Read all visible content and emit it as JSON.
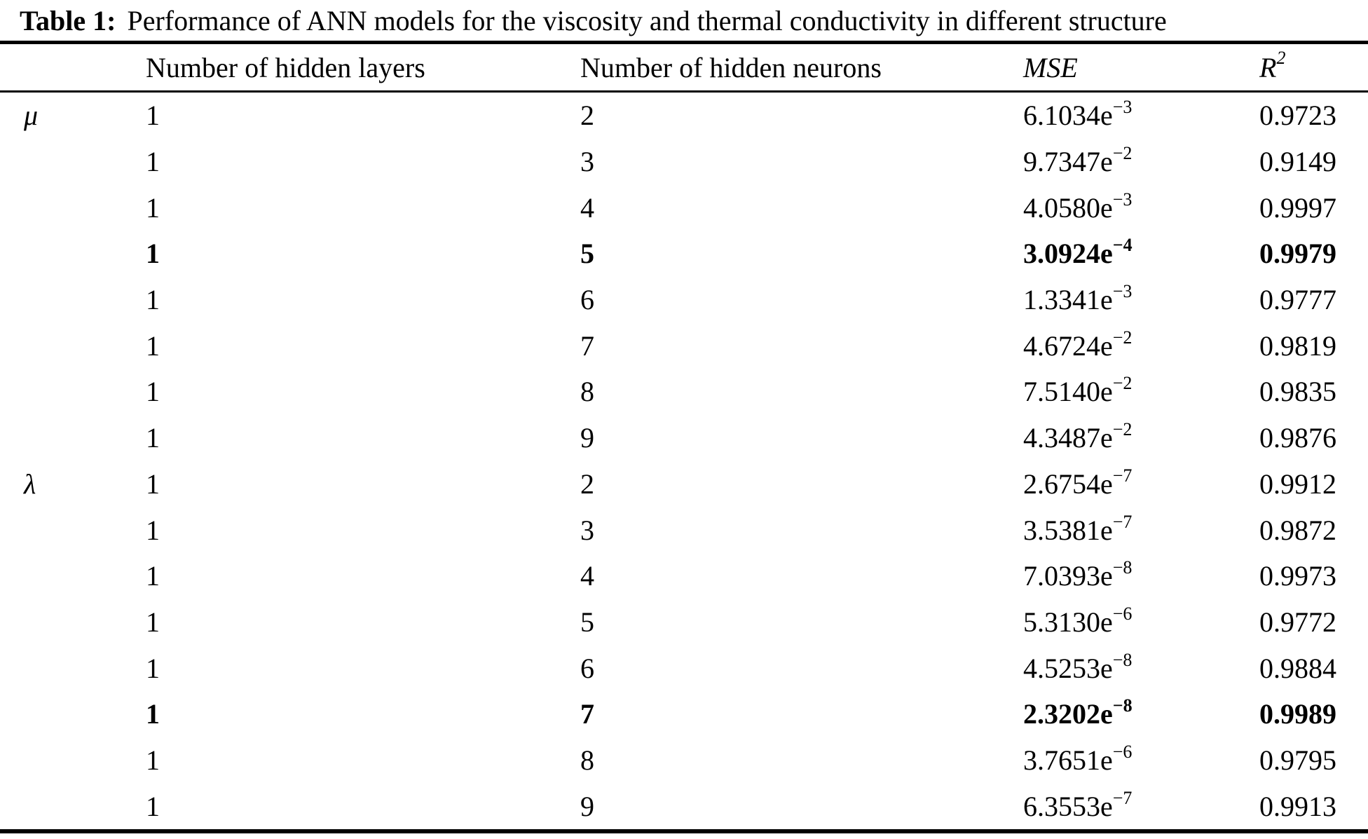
{
  "caption": {
    "label": "Table 1:",
    "text": "Performance of ANN models for the viscosity and thermal conductivity in different structure"
  },
  "table": {
    "columns": {
      "group": "",
      "layers": "Number of hidden layers",
      "neurons": "Number of hidden neurons",
      "mse": "MSE",
      "r2_base": "R",
      "r2_sup": "2"
    },
    "rows": [
      {
        "group": "μ",
        "layers": "1",
        "neurons": "2",
        "mse": "6.1034e",
        "exp": "−3",
        "r2": "0.9723",
        "bold": false
      },
      {
        "group": "",
        "layers": "1",
        "neurons": "3",
        "mse": "9.7347e",
        "exp": "−2",
        "r2": "0.9149",
        "bold": false
      },
      {
        "group": "",
        "layers": "1",
        "neurons": "4",
        "mse": "4.0580e",
        "exp": "−3",
        "r2": "0.9997",
        "bold": false
      },
      {
        "group": "",
        "layers": "1",
        "neurons": "5",
        "mse": "3.0924e",
        "exp": "−4",
        "r2": "0.9979",
        "bold": true
      },
      {
        "group": "",
        "layers": "1",
        "neurons": "6",
        "mse": "1.3341e",
        "exp": "−3",
        "r2": "0.9777",
        "bold": false
      },
      {
        "group": "",
        "layers": "1",
        "neurons": "7",
        "mse": "4.6724e",
        "exp": "−2",
        "r2": "0.9819",
        "bold": false
      },
      {
        "group": "",
        "layers": "1",
        "neurons": "8",
        "mse": "7.5140e",
        "exp": "−2",
        "r2": "0.9835",
        "bold": false
      },
      {
        "group": "",
        "layers": "1",
        "neurons": "9",
        "mse": "4.3487e",
        "exp": "−2",
        "r2": "0.9876",
        "bold": false
      },
      {
        "group": "λ",
        "layers": "1",
        "neurons": "2",
        "mse": "2.6754e",
        "exp": "−7",
        "r2": "0.9912",
        "bold": false
      },
      {
        "group": "",
        "layers": "1",
        "neurons": "3",
        "mse": "3.5381e",
        "exp": "−7",
        "r2": "0.9872",
        "bold": false
      },
      {
        "group": "",
        "layers": "1",
        "neurons": "4",
        "mse": "7.0393e",
        "exp": "−8",
        "r2": "0.9973",
        "bold": false
      },
      {
        "group": "",
        "layers": "1",
        "neurons": "5",
        "mse": "5.3130e",
        "exp": "−6",
        "r2": "0.9772",
        "bold": false
      },
      {
        "group": "",
        "layers": "1",
        "neurons": "6",
        "mse": "4.5253e",
        "exp": "−8",
        "r2": "0.9884",
        "bold": false
      },
      {
        "group": "",
        "layers": "1",
        "neurons": "7",
        "mse": "2.3202e",
        "exp": "−8",
        "r2": "0.9989",
        "bold": true
      },
      {
        "group": "",
        "layers": "1",
        "neurons": "8",
        "mse": "3.7651e",
        "exp": "−6",
        "r2": "0.9795",
        "bold": false
      },
      {
        "group": "",
        "layers": "1",
        "neurons": "9",
        "mse": "6.3553e",
        "exp": "−7",
        "r2": "0.9913",
        "bold": false
      }
    ]
  }
}
